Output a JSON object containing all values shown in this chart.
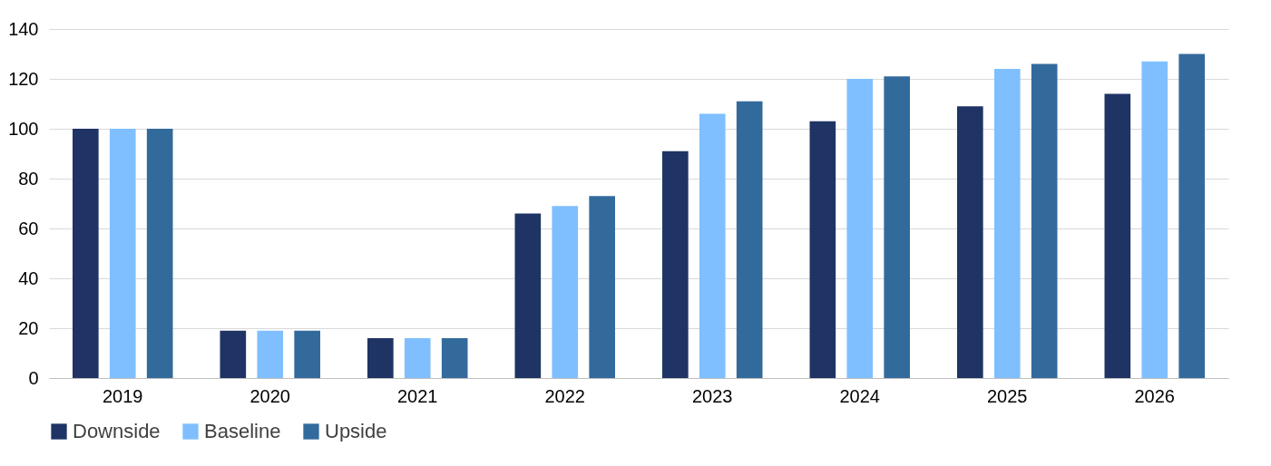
{
  "chart_data": {
    "type": "bar",
    "categories": [
      "2019",
      "2020",
      "2021",
      "2022",
      "2023",
      "2024",
      "2025",
      "2026"
    ],
    "series": [
      {
        "name": "Downside",
        "color": "#1f3464",
        "values": [
          100,
          19,
          16,
          66,
          91,
          103,
          109,
          114
        ]
      },
      {
        "name": "Baseline",
        "color": "#7fbfff",
        "values": [
          100,
          19,
          16,
          69,
          106,
          120,
          124,
          127
        ]
      },
      {
        "name": "Upside",
        "color": "#336a9c",
        "values": [
          100,
          19,
          16,
          73,
          111,
          121,
          126,
          130
        ]
      }
    ],
    "ylim": [
      0,
      140
    ],
    "yticks": [
      0,
      20,
      40,
      60,
      80,
      100,
      120,
      140
    ],
    "grid": "y",
    "legend": "bottom"
  }
}
